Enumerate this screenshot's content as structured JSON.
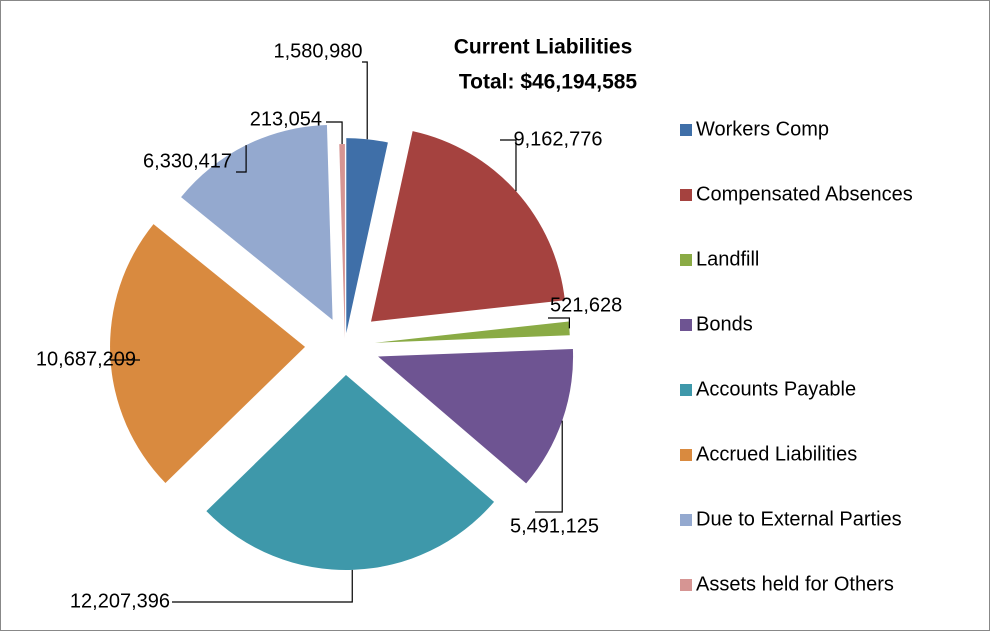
{
  "chart_data": {
    "type": "pie",
    "title": "Current Liabilities",
    "subtitle": "Total:  $46,194,585",
    "categories": [
      "Workers Comp",
      "Compensated Absences",
      "Landfill",
      "Bonds",
      "Accounts Payable",
      "Accrued Liabilities",
      "Due to External Parties",
      "Assets held for Others"
    ],
    "values": [
      1580980,
      9162776,
      521628,
      5491125,
      12207396,
      10687209,
      6330417,
      213054
    ],
    "value_labels": [
      "1,580,980",
      "9,162,776",
      "521,628",
      "5,491,125",
      "12,207,396",
      "10,687,209",
      "6,330,417",
      "213,054"
    ],
    "colors": [
      "#3f6fa8",
      "#a5423f",
      "#8aab45",
      "#6e5492",
      "#3e98aa",
      "#d98a3f",
      "#94a9cf",
      "#d69593"
    ],
    "legend": "right"
  }
}
